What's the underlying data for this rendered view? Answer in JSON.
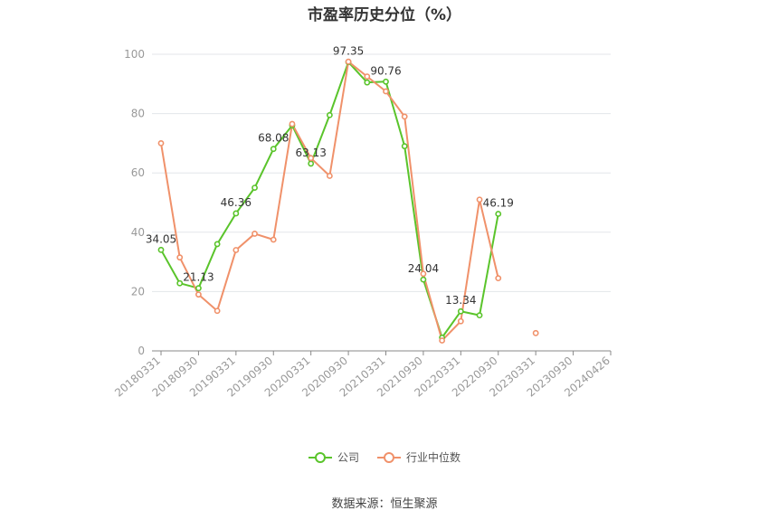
{
  "chart_data": {
    "type": "line",
    "title": "市盈率历史分位（%）",
    "categories": [
      "20180331",
      "20180630",
      "20180930",
      "20181231",
      "20190331",
      "20190630",
      "20190930",
      "20191231",
      "20200331",
      "20200630",
      "20200930",
      "20201231",
      "20210331",
      "20210630",
      "20210930",
      "20211231",
      "20220331",
      "20220630",
      "20220930",
      "20221231",
      "20230331",
      "20230630",
      "20230930",
      "20231231",
      "20240426"
    ],
    "x_tick_labels": [
      "20180331",
      "20180930",
      "20190331",
      "20190930",
      "20200331",
      "20200930",
      "20210331",
      "20210930",
      "20220331",
      "20220930",
      "20230331",
      "20230930",
      "20240426"
    ],
    "ylim": [
      0,
      100
    ],
    "y_ticks": [
      0,
      20,
      40,
      60,
      80,
      100
    ],
    "grid": true,
    "legend_position": "bottom",
    "series": [
      {
        "name": "公司",
        "color": "#5ac42b",
        "values": [
          34.05,
          22.8,
          21.13,
          36.0,
          46.36,
          55.0,
          68.08,
          76.0,
          63.13,
          79.5,
          97.35,
          90.5,
          90.76,
          69.0,
          24.04,
          4.5,
          13.34,
          12.0,
          46.19,
          null,
          null,
          null,
          null,
          null,
          null
        ],
        "labels": {
          "0": "34.05",
          "2": "21.13",
          "4": "46.36",
          "6": "68.08",
          "8": "63.13",
          "10": "97.35",
          "12": "90.76",
          "14": "24.04",
          "16": "13.34",
          "18": "46.19"
        }
      },
      {
        "name": "行业中位数",
        "color": "#f0916a",
        "values": [
          70.0,
          31.5,
          19.0,
          13.5,
          34.0,
          39.5,
          37.5,
          76.5,
          65.0,
          59.0,
          97.5,
          92.5,
          87.5,
          79.0,
          26.0,
          3.5,
          10.0,
          51.0,
          24.5,
          null,
          6.0,
          null,
          null,
          null,
          null
        ]
      }
    ]
  },
  "legend": {
    "company": "公司",
    "industry": "行业中位数"
  },
  "source": "数据来源：恒生聚源"
}
